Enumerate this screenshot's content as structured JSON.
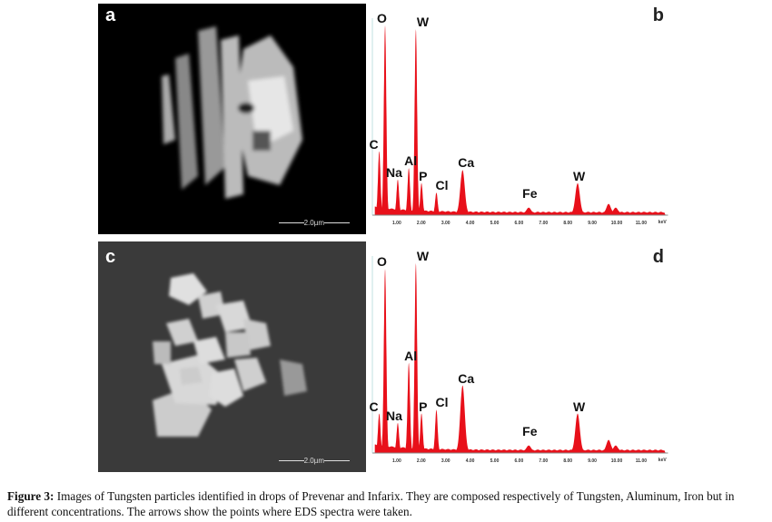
{
  "panels": {
    "a": {
      "letter": "a",
      "scale_label": "2.0µm"
    },
    "b": {
      "letter": "b"
    },
    "c": {
      "letter": "c",
      "scale_label": "2.0µm"
    },
    "d": {
      "letter": "d"
    }
  },
  "chart_data": [
    {
      "type": "line",
      "panel": "b",
      "title": "",
      "xlabel": "",
      "x_unit": "keV",
      "ylabel": "",
      "xlim": [
        0,
        12
      ],
      "ylim": [
        0,
        100
      ],
      "x_ticks": [
        "1.00",
        "2.00",
        "3.00",
        "4.00",
        "5.00",
        "6.00",
        "7.00",
        "8.00",
        "9.00",
        "10.00",
        "11.00"
      ],
      "peaks": [
        {
          "label": "C",
          "x": 0.28,
          "y": 33
        },
        {
          "label": "O",
          "x": 0.52,
          "y": 100
        },
        {
          "label": "Na",
          "x": 1.04,
          "y": 18
        },
        {
          "label": "Al",
          "x": 1.49,
          "y": 24
        },
        {
          "label": "W",
          "x": 1.78,
          "y": 98
        },
        {
          "label": "P",
          "x": 2.01,
          "y": 16
        },
        {
          "label": "Cl",
          "x": 2.62,
          "y": 11
        },
        {
          "label": "Ca",
          "x": 3.69,
          "y": 23
        },
        {
          "label": "Fe",
          "x": 6.4,
          "y": 3
        },
        {
          "label": "W",
          "x": 8.4,
          "y": 16
        },
        {
          "label": "",
          "x": 9.67,
          "y": 5
        },
        {
          "label": "",
          "x": 9.96,
          "y": 3
        }
      ]
    },
    {
      "type": "line",
      "panel": "d",
      "title": "",
      "xlabel": "",
      "x_unit": "keV",
      "ylabel": "",
      "xlim": [
        0,
        12
      ],
      "ylim": [
        0,
        100
      ],
      "x_ticks": [
        "1.00",
        "2.00",
        "3.00",
        "4.00",
        "5.00",
        "6.00",
        "7.00",
        "8.00",
        "9.00",
        "10.00",
        "11.00"
      ],
      "peaks": [
        {
          "label": "C",
          "x": 0.28,
          "y": 20
        },
        {
          "label": "O",
          "x": 0.52,
          "y": 97
        },
        {
          "label": "Na",
          "x": 1.04,
          "y": 15
        },
        {
          "label": "Al",
          "x": 1.49,
          "y": 47
        },
        {
          "label": "W",
          "x": 1.78,
          "y": 100
        },
        {
          "label": "P",
          "x": 2.01,
          "y": 20
        },
        {
          "label": "Cl",
          "x": 2.62,
          "y": 22
        },
        {
          "label": "Ca",
          "x": 3.69,
          "y": 35
        },
        {
          "label": "Fe",
          "x": 6.4,
          "y": 3
        },
        {
          "label": "W",
          "x": 8.4,
          "y": 20
        },
        {
          "label": "",
          "x": 9.67,
          "y": 6
        },
        {
          "label": "",
          "x": 9.96,
          "y": 3
        }
      ]
    }
  ],
  "caption": {
    "label": "Figure 3:",
    "text": " Images of Tungsten particles identified in drops of Prevenar and Infarix. They are composed respectively of Tungsten, Aluminum, Iron but in different concentrations. The arrows show the points where EDS spectra were taken."
  }
}
